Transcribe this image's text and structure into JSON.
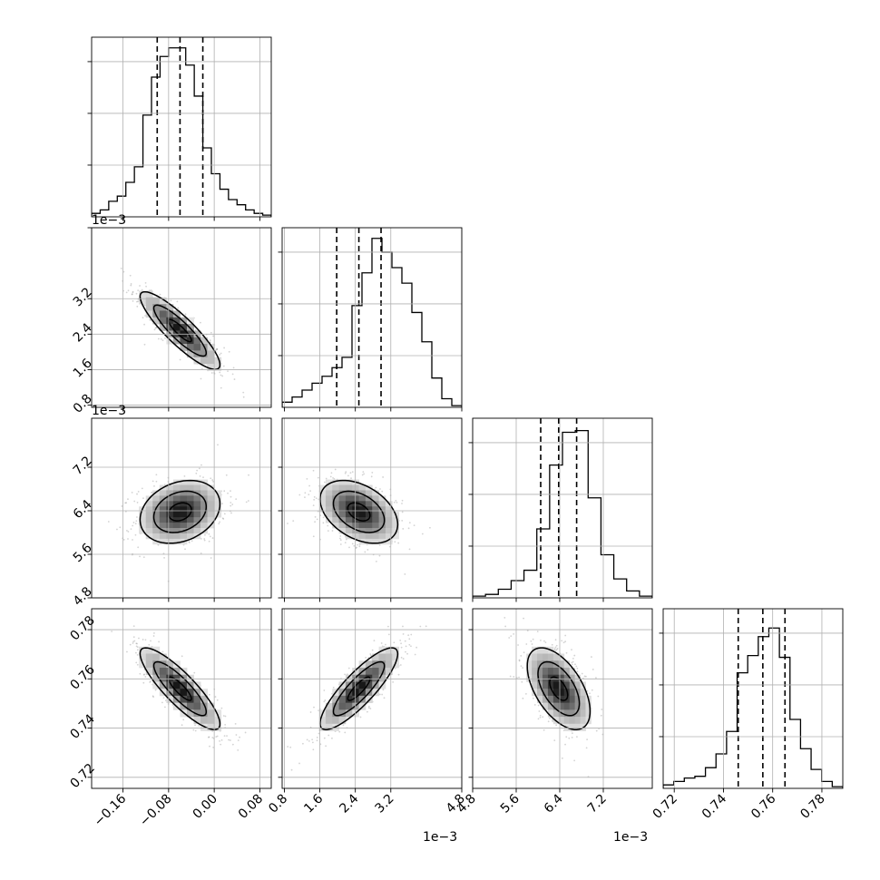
{
  "chart_data": {
    "type": "corner",
    "parameters": [
      {
        "label": "",
        "range": [
          -0.215,
          0.1
        ],
        "ticks": [
          -0.16,
          -0.08,
          0.0,
          0.08
        ],
        "tick_labels": [
          "−0.16",
          "−0.08",
          "0.00",
          "0.08"
        ],
        "offset_text": ""
      },
      {
        "label": "",
        "range": [
          0.75,
          4.8
        ],
        "ticks": [
          0.8,
          1.6,
          2.4,
          3.2,
          4.8
        ],
        "tick_labels": [
          "0.8",
          "1.6",
          "2.4",
          "3.2",
          "4.8"
        ],
        "left_tick_labels": [
          "0.8",
          "1.6",
          "2.4",
          "3.2"
        ],
        "offset_text": "1e−3"
      },
      {
        "label": "",
        "range": [
          4.8,
          8.1
        ],
        "ticks": [
          4.8,
          5.6,
          6.4,
          7.2
        ],
        "tick_labels": [
          "4.8",
          "5.6",
          "6.4",
          "7.2"
        ],
        "offset_text": "1e−3"
      },
      {
        "label": "",
        "range": [
          0.7155,
          0.7885
        ],
        "ticks": [
          0.72,
          0.74,
          0.76,
          0.78
        ],
        "tick_labels": [
          "0.72",
          "0.74",
          "0.76",
          "0.78"
        ],
        "offset_text": ""
      }
    ],
    "quantiles": [
      {
        "q16": -0.1,
        "median": -0.06,
        "q84": -0.02
      },
      {
        "q16": 1.98,
        "median": 2.48,
        "q84": 2.98
      },
      {
        "q16": 6.05,
        "median": 6.38,
        "q84": 6.71
      },
      {
        "q16": 0.746,
        "median": 0.756,
        "q84": 0.765
      }
    ],
    "histograms": [
      [
        0.02,
        0.04,
        0.09,
        0.12,
        0.2,
        0.29,
        0.59,
        0.81,
        0.93,
        0.98,
        0.98,
        0.88,
        0.7,
        0.4,
        0.25,
        0.16,
        0.1,
        0.07,
        0.04,
        0.02,
        0.01
      ],
      [
        0.03,
        0.06,
        0.1,
        0.14,
        0.18,
        0.23,
        0.29,
        0.59,
        0.78,
        0.98,
        0.9,
        0.81,
        0.72,
        0.55,
        0.38,
        0.17,
        0.05,
        0.01
      ],
      [
        0.01,
        0.02,
        0.05,
        0.1,
        0.16,
        0.4,
        0.77,
        0.96,
        0.97,
        0.58,
        0.25,
        0.11,
        0.04,
        0.01
      ],
      [
        0.02,
        0.04,
        0.06,
        0.07,
        0.12,
        0.2,
        0.33,
        0.67,
        0.77,
        0.88,
        0.93,
        0.76,
        0.4,
        0.23,
        0.11,
        0.04,
        0.01
      ]
    ],
    "correlations": {
      "1_0": -0.88,
      "2_0": 0.25,
      "2_1": -0.4,
      "3_0": -0.86,
      "3_1": 0.85,
      "3_2": -0.55
    },
    "grid": true,
    "contour_levels": 3,
    "show_scatter_points": true
  }
}
